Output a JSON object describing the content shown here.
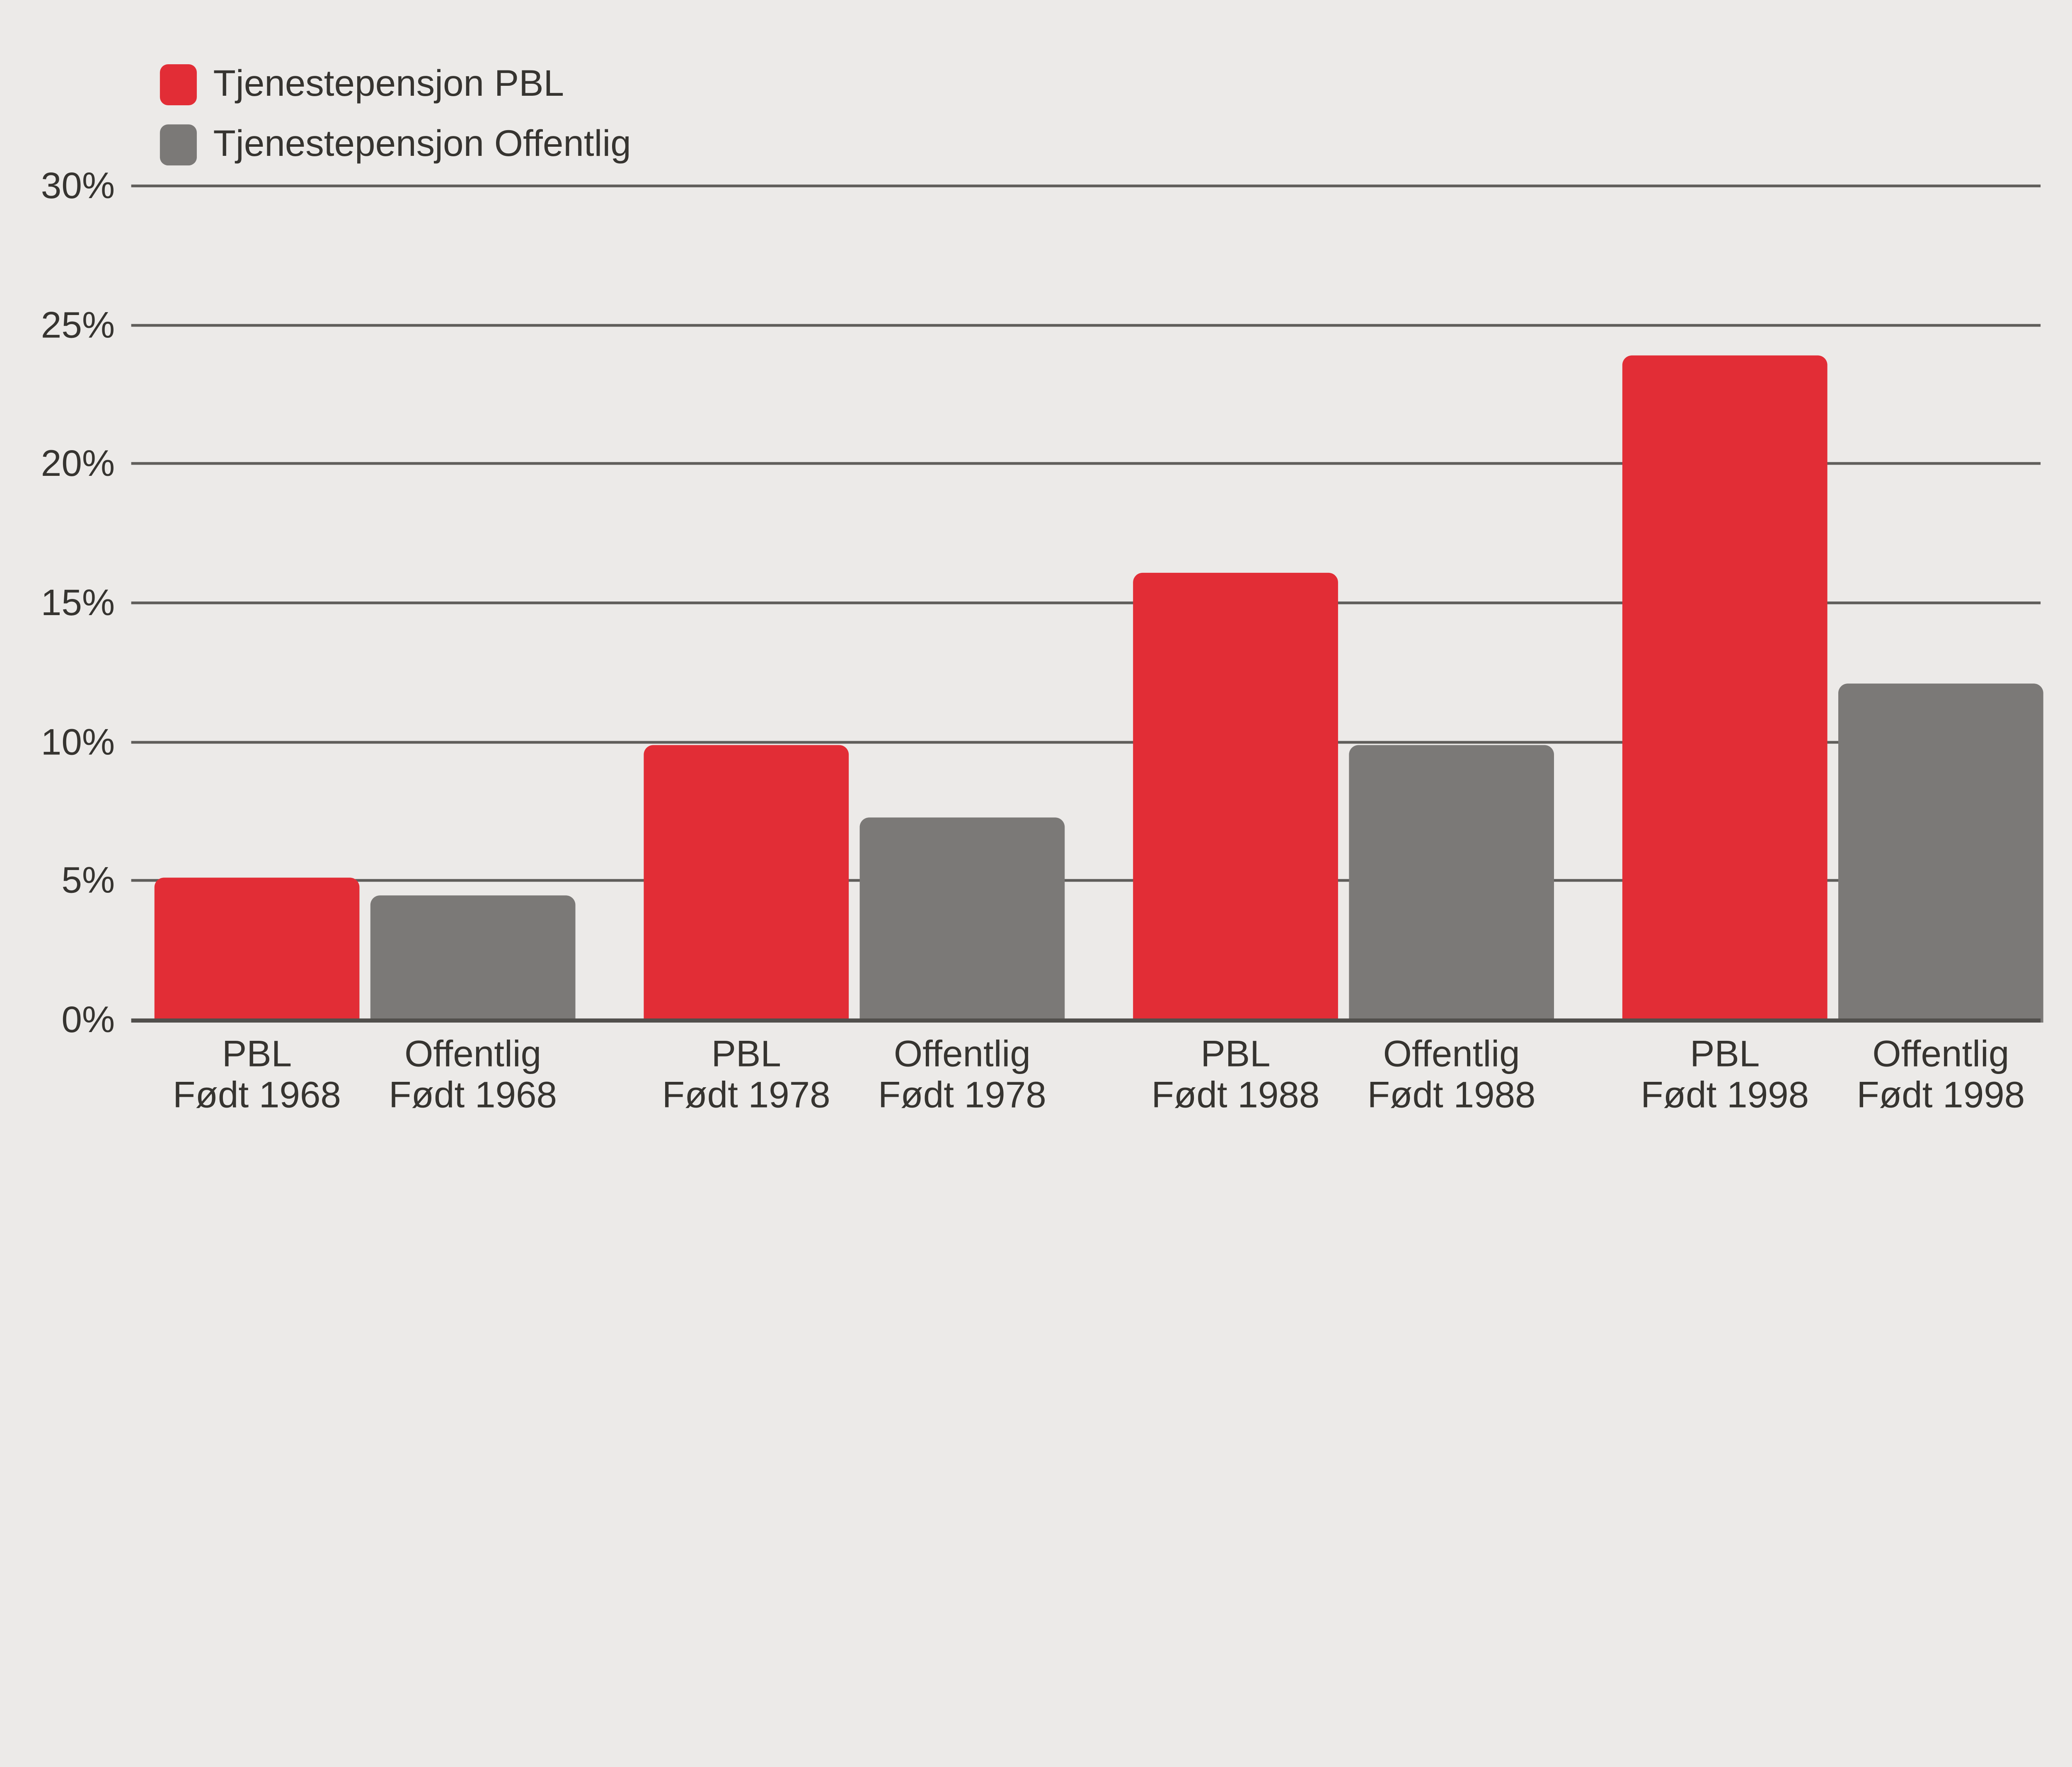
{
  "colors": {
    "background": "#eceae8",
    "gridline": "#605e5b",
    "axis_line": "#514f4c",
    "text": "#363430"
  },
  "chart_data": {
    "type": "bar",
    "title": "",
    "xlabel": "",
    "ylabel": "",
    "ylim": [
      0,
      30
    ],
    "grid": true,
    "legend_position": "top-left",
    "yticks": [
      {
        "value": 30,
        "label": "30%"
      },
      {
        "value": 25,
        "label": "25%"
      },
      {
        "value": 20,
        "label": "20%"
      },
      {
        "value": 15,
        "label": "15%"
      },
      {
        "value": 10,
        "label": "10%"
      },
      {
        "value": 5,
        "label": "5%"
      },
      {
        "value": 0,
        "label": "0%"
      }
    ],
    "series": [
      {
        "name": "Tjenestepensjon PBL",
        "color": "#e22d36"
      },
      {
        "name": "Tjenestepensjon Offentlig",
        "color": "#7b7977"
      }
    ],
    "groups": [
      {
        "bars": [
          {
            "series": 0,
            "label_line1": "PBL",
            "label_line2": "Født 1968",
            "value": 5.1
          },
          {
            "series": 1,
            "label_line1": "Offentlig",
            "label_line2": "Født 1968",
            "value": 4.5
          }
        ]
      },
      {
        "bars": [
          {
            "series": 0,
            "label_line1": "PBL",
            "label_line2": "Født 1978",
            "value": 9.9
          },
          {
            "series": 1,
            "label_line1": "Offentlig",
            "label_line2": "Født 1978",
            "value": 7.3
          }
        ]
      },
      {
        "bars": [
          {
            "series": 0,
            "label_line1": "PBL",
            "label_line2": "Født 1988",
            "value": 16.1
          },
          {
            "series": 1,
            "label_line1": "Offentlig",
            "label_line2": "Født 1988",
            "value": 9.9
          }
        ]
      },
      {
        "bars": [
          {
            "series": 0,
            "label_line1": "PBL",
            "label_line2": "Født 1998",
            "value": 23.9
          },
          {
            "series": 1,
            "label_line1": "Offentlig",
            "label_line2": "Født 1998",
            "value": 12.1
          }
        ]
      }
    ]
  }
}
